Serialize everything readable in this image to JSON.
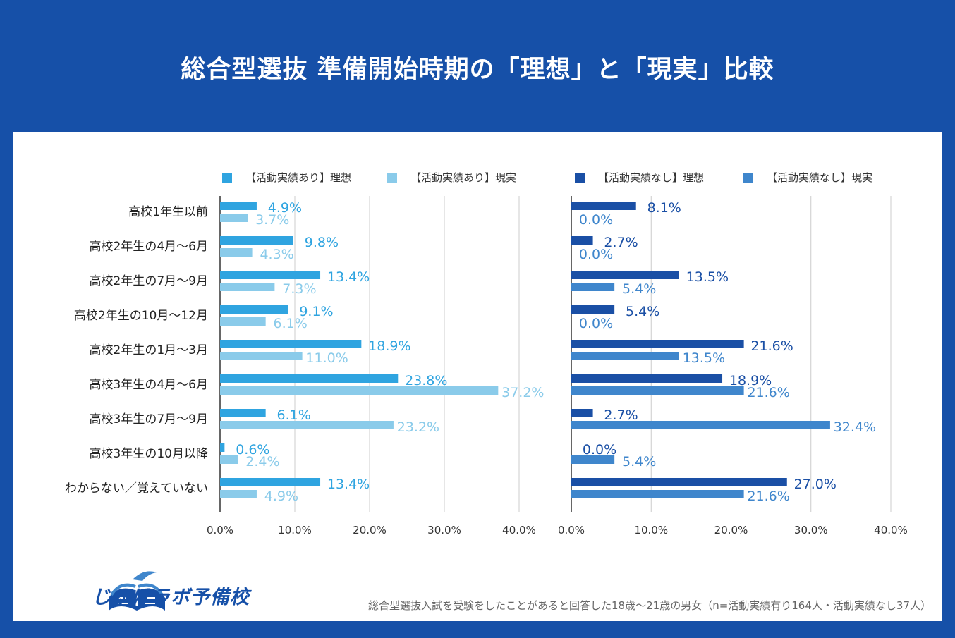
{
  "title": "総合型選抜 準備開始時期の「理想」と「現実」比較",
  "brand": {
    "name": "じゅけラボ予備校",
    "color": "#1650a8"
  },
  "footnote": "総合型選抜入試を受験をしたことがあると回答した18歳～21歳の男女（n=活動実績有り164人・活動実績なし37人）",
  "chart_data": [
    {
      "type": "bar",
      "orientation": "horizontal",
      "categories": [
        "高校1年生以前",
        "高校2年生の4月～6月",
        "高校2年生の7月～9月",
        "高校2年生の10月～12月",
        "高校2年生の1月～3月",
        "高校3年生の4月～6月",
        "高校3年生の7月～9月",
        "高校3年生の10月以降",
        "わからない／覚えていない"
      ],
      "series": [
        {
          "name": "【活動実績あり】理想",
          "color": "#2fa4e0",
          "labels": [
            "4.9%",
            "9.8%",
            "13.4%",
            "9.1%",
            "18.9%",
            "23.8%",
            "6.1%",
            "0.6%",
            "13.4%"
          ],
          "values": [
            4.9,
            9.8,
            13.4,
            9.1,
            18.9,
            23.8,
            6.1,
            0.6,
            13.4
          ]
        },
        {
          "name": "【活動実績あり】現実",
          "color": "#8acbea",
          "labels": [
            "3.7%",
            "4.3%",
            "7.3%",
            "6.1%",
            "11.0%",
            "37.2%",
            "23.2%",
            "2.4%",
            "4.9%"
          ],
          "values": [
            3.7,
            4.3,
            7.3,
            6.1,
            11.0,
            37.2,
            23.2,
            2.4,
            4.9
          ]
        }
      ],
      "xlim": [
        0,
        40
      ],
      "ticks": [
        "0.0%",
        "10.0%",
        "20.0%",
        "30.0%",
        "40.0%"
      ],
      "grid": true,
      "legend": "top"
    },
    {
      "type": "bar",
      "orientation": "horizontal",
      "categories": [
        "高校1年生以前",
        "高校2年生の4月～6月",
        "高校2年生の7月～9月",
        "高校2年生の10月～12月",
        "高校2年生の1月～3月",
        "高校3年生の4月～6月",
        "高校3年生の7月～9月",
        "高校3年生の10月以降",
        "わからない／覚えていない"
      ],
      "series": [
        {
          "name": "【活動実績なし】理想",
          "color": "#1a4fa5",
          "labels": [
            "8.1%",
            "2.7%",
            "13.5%",
            "5.4%",
            "21.6%",
            "18.9%",
            "2.7%",
            "0.0%",
            "27.0%"
          ],
          "values": [
            8.1,
            2.7,
            13.5,
            5.4,
            21.6,
            18.9,
            2.7,
            0.0,
            27.0
          ]
        },
        {
          "name": "【活動実績なし】現実",
          "color": "#3f86cc",
          "labels": [
            "0.0%",
            "0.0%",
            "5.4%",
            "0.0%",
            "13.5%",
            "21.6%",
            "32.4%",
            "5.4%",
            "21.6%"
          ],
          "values": [
            0.0,
            0.0,
            5.4,
            0.0,
            13.5,
            21.6,
            32.4,
            5.4,
            21.6
          ]
        }
      ],
      "xlim": [
        0,
        40
      ],
      "ticks": [
        "0.0%",
        "10.0%",
        "20.0%",
        "30.0%",
        "40.0%"
      ],
      "grid": true,
      "legend": "top"
    }
  ]
}
